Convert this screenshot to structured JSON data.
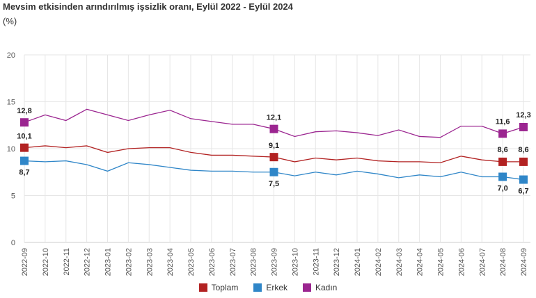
{
  "chart_data": {
    "type": "line",
    "title": "Mevsim etkisinden arındırılmış işsizlik oranı, Eylül 2022 - Eylül 2024",
    "ylabel": "(%)",
    "ylim": [
      0,
      20
    ],
    "yticks": [
      0,
      5,
      10,
      15,
      20
    ],
    "grid": true,
    "legend": "bottom",
    "categories": [
      "2022-09",
      "2022-10",
      "2022-11",
      "2022-12",
      "2023-01",
      "2023-02",
      "2023-03",
      "2023-04",
      "2023-05",
      "2023-06",
      "2023-07",
      "2023-08",
      "2023-09",
      "2023-10",
      "2023-11",
      "2023-12",
      "2024-01",
      "2024-02",
      "2024-03",
      "2024-04",
      "2024-05",
      "2024-06",
      "2024-07",
      "2024-08",
      "2024-09"
    ],
    "labeled_indices": [
      0,
      12,
      23,
      24
    ],
    "series": [
      {
        "name": "Toplam",
        "color": "#b22222",
        "values": [
          10.1,
          10.3,
          10.1,
          10.3,
          9.6,
          10.0,
          10.1,
          10.1,
          9.6,
          9.3,
          9.3,
          9.2,
          9.1,
          8.6,
          9.0,
          8.8,
          9.0,
          8.7,
          8.6,
          8.6,
          8.5,
          9.2,
          8.8,
          8.6,
          8.6
        ]
      },
      {
        "name": "Erkek",
        "color": "#2f86c8",
        "values": [
          8.7,
          8.6,
          8.7,
          8.3,
          7.6,
          8.5,
          8.3,
          8.0,
          7.7,
          7.6,
          7.6,
          7.5,
          7.5,
          7.1,
          7.5,
          7.2,
          7.6,
          7.3,
          6.9,
          7.2,
          7.0,
          7.5,
          7.0,
          7.0,
          6.7
        ]
      },
      {
        "name": "Kadın",
        "color": "#9b2590",
        "values": [
          12.8,
          13.6,
          13.0,
          14.2,
          13.6,
          13.0,
          13.6,
          14.1,
          13.2,
          12.9,
          12.6,
          12.6,
          12.1,
          11.3,
          11.8,
          11.9,
          11.7,
          11.4,
          12.0,
          11.3,
          11.2,
          12.4,
          12.4,
          11.6,
          12.3
        ]
      }
    ]
  }
}
